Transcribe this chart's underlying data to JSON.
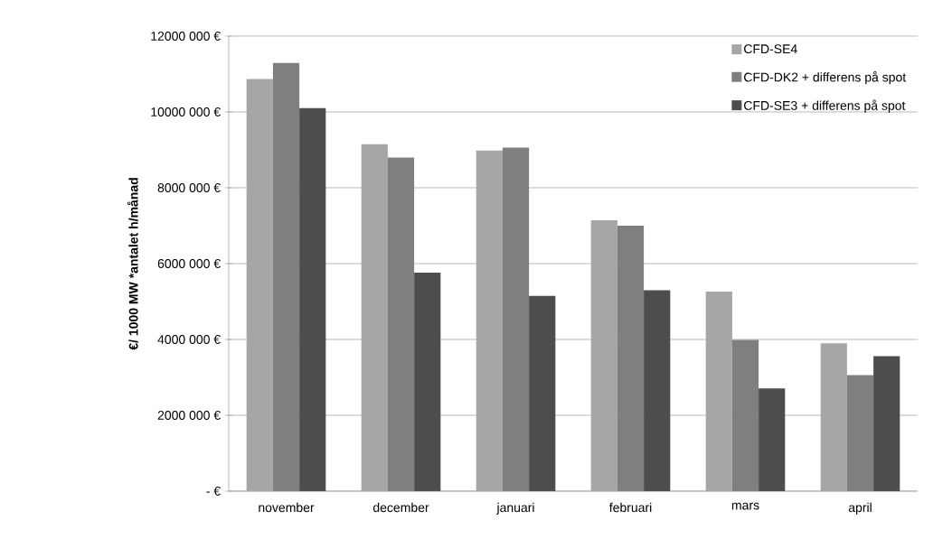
{
  "chart_data": {
    "type": "bar",
    "ylabel": "€/ 1000 MW *antalet h/månad",
    "categories": [
      "november",
      "december",
      "januari",
      "februari",
      "mars",
      "april"
    ],
    "series": [
      {
        "name": "CFD-SE4",
        "color": "#a6a6a6",
        "values": [
          10870000,
          9150000,
          8980000,
          7140000,
          5260000,
          3900000
        ]
      },
      {
        "name": "CFD-DK2 + differens på spot",
        "color": "#7f7f7f",
        "values": [
          11290000,
          8800000,
          9060000,
          7000000,
          3990000,
          3060000
        ]
      },
      {
        "name": "CFD-SE3 + differens på spot",
        "color": "#4d4d4d",
        "values": [
          10100000,
          5760000,
          5150000,
          5300000,
          2710000,
          3560000
        ]
      }
    ],
    "ylim": [
      0,
      12000000
    ],
    "yticks": [
      {
        "value": 0,
        "label": "- €"
      },
      {
        "value": 2000000,
        "label": "2000 000 €"
      },
      {
        "value": 4000000,
        "label": "4000 000 €"
      },
      {
        "value": 6000000,
        "label": "6000 000 €"
      },
      {
        "value": 8000000,
        "label": "8000 000 €"
      },
      {
        "value": 10000000,
        "label": "10000 000 €"
      },
      {
        "value": 12000000,
        "label": "12000 000 €"
      }
    ],
    "grid": "y",
    "legend": "top right"
  }
}
